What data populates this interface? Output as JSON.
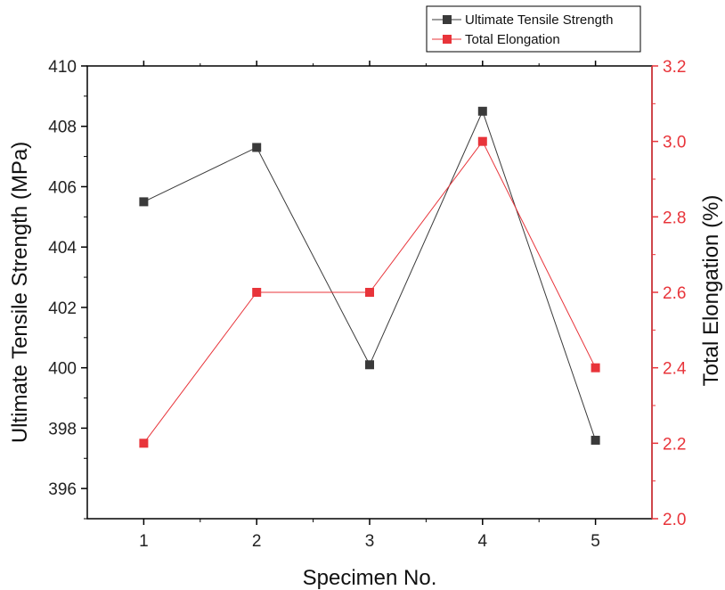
{
  "chart_data": {
    "type": "line",
    "x": [
      1,
      2,
      3,
      4,
      5
    ],
    "xlabel": "Specimen No.",
    "xticks": [
      "1",
      "2",
      "3",
      "4",
      "5"
    ],
    "xlim": [
      0.5,
      5.5
    ],
    "y_left": {
      "label": "Ultimate Tensile Strength (MPa)",
      "ylim": [
        395,
        410
      ],
      "ticks": [
        "396",
        "398",
        "400",
        "402",
        "404",
        "406",
        "408",
        "410"
      ],
      "tick_values": [
        396,
        398,
        400,
        402,
        404,
        406,
        408,
        410
      ]
    },
    "y_right": {
      "label": "Total Elongation (%)",
      "ylim": [
        2.0,
        3.2
      ],
      "ticks": [
        "2.0",
        "2.2",
        "2.4",
        "2.6",
        "2.8",
        "3.0",
        "3.2"
      ],
      "tick_values": [
        2.0,
        2.2,
        2.4,
        2.6,
        2.8,
        3.0,
        3.2
      ]
    },
    "series": [
      {
        "name": "Ultimate Tensile Strength",
        "axis": "left",
        "color": "#3a3a3a",
        "marker": "square",
        "values": [
          405.5,
          407.3,
          400.1,
          408.5,
          397.6
        ]
      },
      {
        "name": "Total Elongation",
        "axis": "right",
        "color": "#e8343a",
        "marker": "square",
        "values": [
          2.2,
          2.6,
          2.6,
          3.0,
          2.4
        ]
      }
    ],
    "legend_position": "top-right",
    "grid": false
  }
}
